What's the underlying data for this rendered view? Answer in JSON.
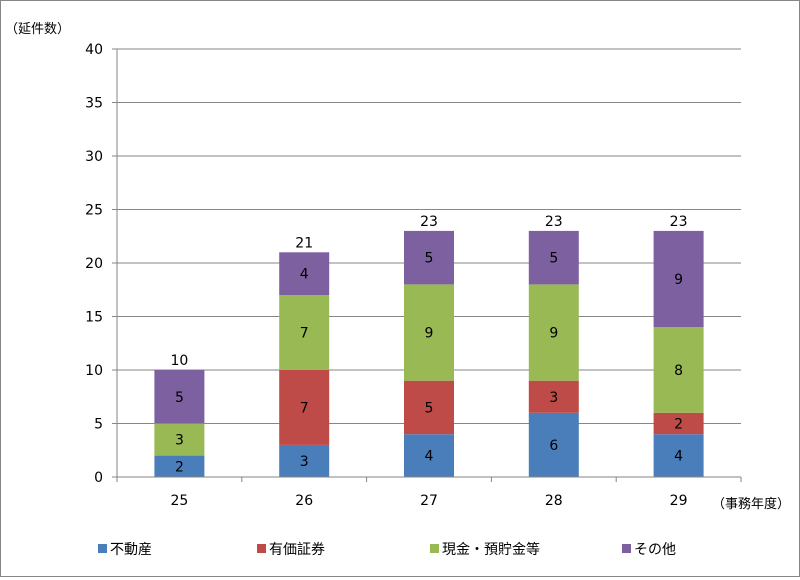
{
  "chart_data": {
    "type": "bar",
    "stacked": true,
    "ylabel": "（延件数）",
    "xlabel": "（事務年度）",
    "categories": [
      "25",
      "26",
      "27",
      "28",
      "29"
    ],
    "ylim": [
      0,
      40
    ],
    "yticks": [
      0,
      5,
      10,
      15,
      20,
      25,
      30,
      35,
      40
    ],
    "grid": true,
    "legend_position": "bottom",
    "series": [
      {
        "name": "不動産",
        "color": "#4a7ebb",
        "values": [
          2,
          3,
          4,
          6,
          4
        ]
      },
      {
        "name": "有価証券",
        "color": "#be4b48",
        "values": [
          0,
          7,
          5,
          3,
          2
        ]
      },
      {
        "name": "現金・預貯金等",
        "color": "#98b954",
        "values": [
          3,
          7,
          9,
          9,
          8
        ]
      },
      {
        "name": "その他",
        "color": "#7d60a0",
        "values": [
          5,
          4,
          5,
          5,
          9
        ]
      }
    ],
    "totals": [
      10,
      21,
      23,
      23,
      23
    ]
  }
}
